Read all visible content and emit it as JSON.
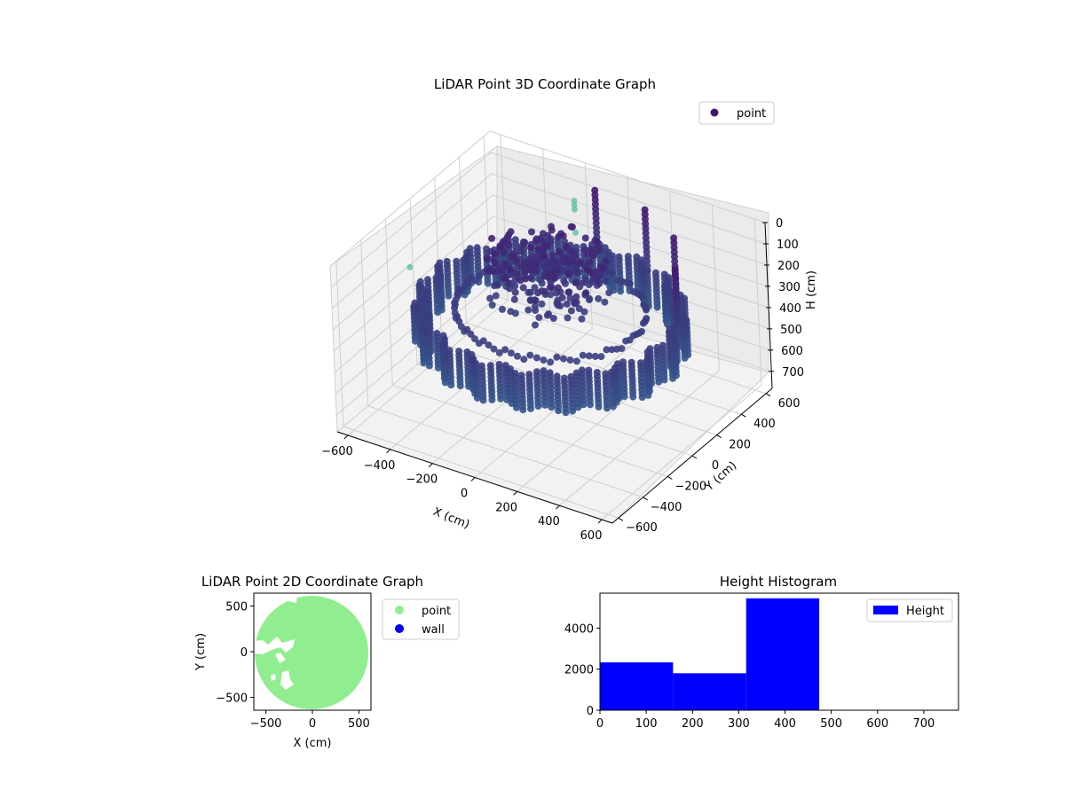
{
  "chart_data": [
    {
      "type": "scatter",
      "projection": "3d",
      "title": "LiDAR Point 3D Coordinate Graph",
      "xlabel": "X (cm)",
      "ylabel": "Y (cm)",
      "zlabel": "H (cm)",
      "xlim": [
        -650,
        650
      ],
      "ylim": [
        -650,
        650
      ],
      "zlim": [
        780,
        0
      ],
      "xticks": [
        -600,
        -400,
        -200,
        0,
        200,
        400,
        600
      ],
      "yticks": [
        -600,
        -400,
        -200,
        0,
        200,
        400,
        600
      ],
      "zticks": [
        0,
        100,
        200,
        300,
        400,
        500,
        600,
        700
      ],
      "zaxis_inverted": true,
      "colormap": "viridis",
      "legend": {
        "placement": "top-right",
        "entries": [
          {
            "label": "point",
            "color": "#46186e"
          }
        ]
      },
      "grid": true,
      "shape": {
        "description": "ring-shaped wall of points",
        "outer_radius": 560,
        "wall_height": [
          320,
          470
        ],
        "central_clutter": true
      }
    },
    {
      "type": "scatter",
      "title": "LiDAR Point 2D Coordinate Graph",
      "xlabel": "X (cm)",
      "ylabel": "Y (cm)",
      "xlim": [
        -630,
        630
      ],
      "ylim": [
        -640,
        640
      ],
      "xticks": [
        -500,
        0,
        500
      ],
      "yticks": [
        -500,
        0,
        500
      ],
      "series": [
        {
          "name": "point",
          "color": "#90ee90"
        },
        {
          "name": "wall",
          "color": "#0000ff"
        }
      ],
      "legend": {
        "placement": "outside-right"
      },
      "grid": false
    },
    {
      "type": "bar",
      "subtype": "histogram",
      "title": "Height Histogram",
      "xlim": [
        0,
        775
      ],
      "ylim": [
        0,
        5700
      ],
      "xticks": [
        0,
        100,
        200,
        300,
        400,
        500,
        600,
        700
      ],
      "yticks": [
        0,
        2000,
        4000
      ],
      "bins": [
        {
          "start": 0,
          "end": 158,
          "count": 2330
        },
        {
          "start": 158,
          "end": 316,
          "count": 1800
        },
        {
          "start": 316,
          "end": 474,
          "count": 5450
        }
      ],
      "series": [
        {
          "name": "Height",
          "color": "#0000ff"
        }
      ],
      "legend": {
        "placement": "top-right"
      },
      "grid": false
    }
  ]
}
